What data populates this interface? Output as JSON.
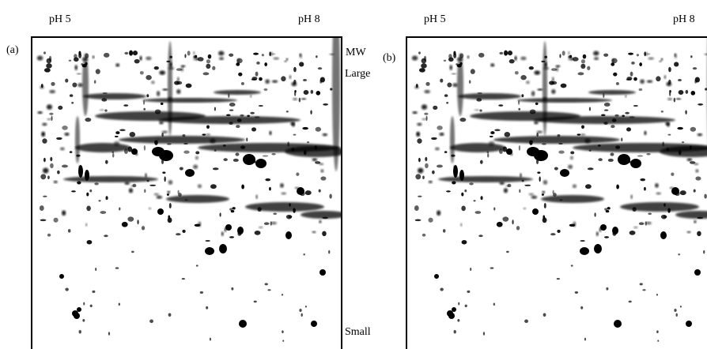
{
  "panels": [
    {
      "label": "(a)",
      "ph_left": "pH 5",
      "ph_right": "pH 8"
    },
    {
      "label": "(b)",
      "ph_left": "pH 5",
      "ph_right": "pH 8"
    }
  ],
  "mw_axis": {
    "title": "MW",
    "top": "Large",
    "bottom": "Small"
  }
}
